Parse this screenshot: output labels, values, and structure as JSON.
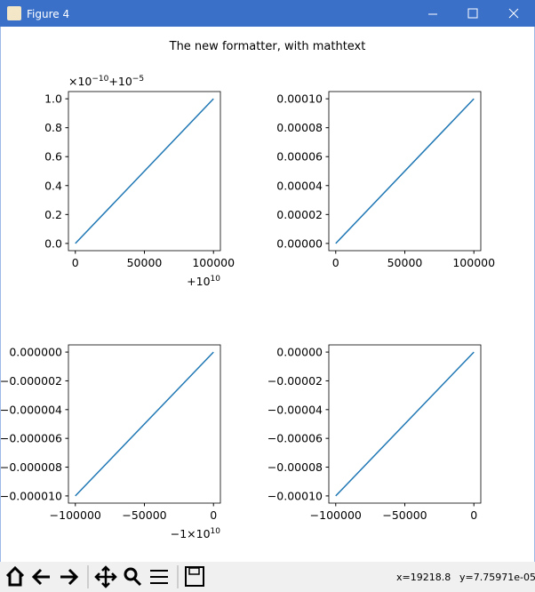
{
  "window": {
    "title": "Figure 4"
  },
  "figure_title": "The new formatter, with mathtext",
  "chart_data": [
    {
      "type": "line",
      "x": [
        0,
        100000
      ],
      "series": [
        {
          "color": "#1f77b4",
          "values": [
            0,
            1
          ]
        }
      ],
      "xlim": [
        -5000,
        105000
      ],
      "ylim": [
        -0.05,
        1.05
      ],
      "xticks": [
        0,
        50000,
        100000
      ],
      "yticks": [
        {
          "value": 0,
          "label": "0.0"
        },
        {
          "value": 0.2,
          "label": "0.2"
        },
        {
          "value": 0.4,
          "label": "0.4"
        },
        {
          "value": 0.6,
          "label": "0.6"
        },
        {
          "value": 0.8,
          "label": "0.8"
        },
        {
          "value": 1,
          "label": "1.0"
        }
      ],
      "y_offset": [
        {
          "text": "×10",
          "sup": "−10"
        },
        {
          "text": "+10",
          "sup": "−5"
        }
      ],
      "x_offset": [
        {
          "text": "+10",
          "sup": "10"
        }
      ]
    },
    {
      "type": "line",
      "x": [
        0,
        100000
      ],
      "series": [
        {
          "color": "#1f77b4",
          "values": [
            0,
            0.0001
          ]
        }
      ],
      "xlim": [
        -5000,
        105000
      ],
      "ylim": [
        -5e-06,
        0.000105
      ],
      "xticks": [
        0,
        50000,
        100000
      ],
      "yticks": [
        {
          "value": 0,
          "label": "0.00000"
        },
        {
          "value": 2e-05,
          "label": "0.00002"
        },
        {
          "value": 4e-05,
          "label": "0.00004"
        },
        {
          "value": 6e-05,
          "label": "0.00006"
        },
        {
          "value": 8e-05,
          "label": "0.00008"
        },
        {
          "value": 0.0001,
          "label": "0.00010"
        }
      ]
    },
    {
      "type": "line",
      "x": [
        -100000,
        0
      ],
      "series": [
        {
          "color": "#1f77b4",
          "values": [
            -1e-05,
            0
          ]
        }
      ],
      "xlim": [
        -105000,
        5000
      ],
      "ylim": [
        -1.05e-05,
        5e-07
      ],
      "xticks": [
        {
          "value": -100000,
          "label": "−100000"
        },
        {
          "value": -50000,
          "label": "−50000"
        },
        0
      ],
      "yticks": [
        {
          "value": 0,
          "label": "0.000000"
        },
        {
          "value": -2e-06,
          "label": "−0.000002"
        },
        {
          "value": -4e-06,
          "label": "−0.000004"
        },
        {
          "value": -6e-06,
          "label": "−0.000006"
        },
        {
          "value": -8e-06,
          "label": "−0.000008"
        },
        {
          "value": -1e-05,
          "label": "−0.000010"
        }
      ],
      "x_offset": [
        {
          "text": "−1×10",
          "sup": "10"
        }
      ]
    },
    {
      "type": "line",
      "x": [
        -100000,
        0
      ],
      "series": [
        {
          "color": "#1f77b4",
          "values": [
            -0.0001,
            0
          ]
        }
      ],
      "xlim": [
        -105000,
        5000
      ],
      "ylim": [
        -0.000105,
        5e-06
      ],
      "xticks": [
        {
          "value": -100000,
          "label": "−100000"
        },
        {
          "value": -50000,
          "label": "−50000"
        },
        0
      ],
      "yticks": [
        {
          "value": 0,
          "label": "0.00000"
        },
        {
          "value": -2e-05,
          "label": "−0.00002"
        },
        {
          "value": -4e-05,
          "label": "−0.00004"
        },
        {
          "value": -6e-05,
          "label": "−0.00006"
        },
        {
          "value": -8e-05,
          "label": "−0.00008"
        },
        {
          "value": -0.0001,
          "label": "−0.00010"
        }
      ]
    }
  ],
  "status": {
    "x": "x=19218.8",
    "y": "y=7.75971e-05"
  }
}
